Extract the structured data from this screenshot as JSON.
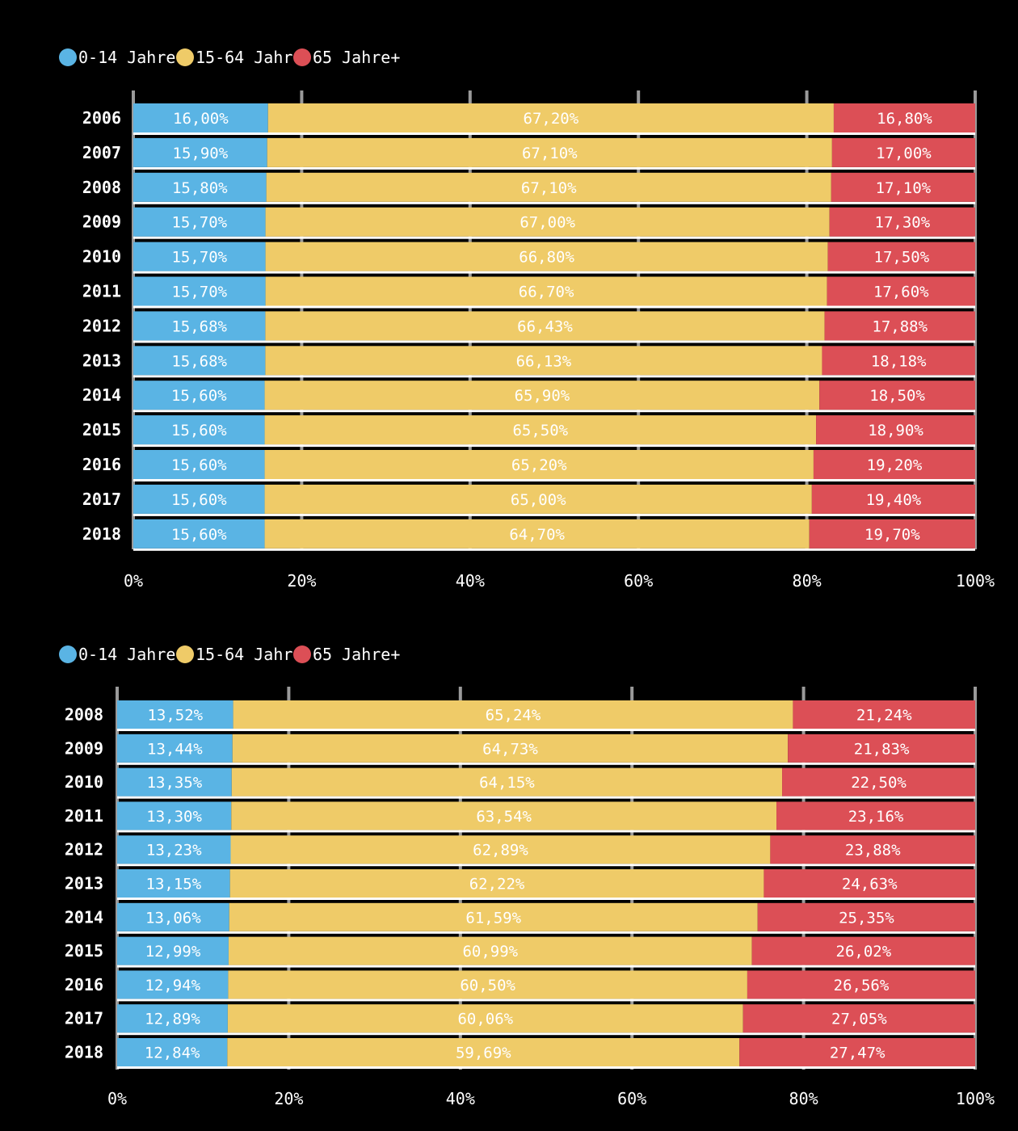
{
  "colors": {
    "young": "#5ab4e4",
    "working": "#efcb68",
    "old": "#dc4f56",
    "grid": "#9a9a9a",
    "separator": "#ffffff"
  },
  "chart_data": [
    {
      "type": "bar",
      "orientation": "horizontal",
      "stacked": true,
      "xlim": [
        0,
        100
      ],
      "x_ticks": [
        "0%",
        "20%",
        "40%",
        "60%",
        "80%",
        "100%"
      ],
      "legend_position": "top-left",
      "grid": true,
      "categories": [
        "2006",
        "2007",
        "2008",
        "2009",
        "2010",
        "2011",
        "2012",
        "2013",
        "2014",
        "2015",
        "2016",
        "2017",
        "2018"
      ],
      "series": [
        {
          "name": "0-14 Jahre",
          "color": "#5ab4e4",
          "values": [
            16.0,
            15.9,
            15.8,
            15.7,
            15.7,
            15.7,
            15.68,
            15.68,
            15.6,
            15.6,
            15.6,
            15.6,
            15.6
          ],
          "labels": [
            "16,00%",
            "15,90%",
            "15,80%",
            "15,70%",
            "15,70%",
            "15,70%",
            "15,68%",
            "15,68%",
            "15,60%",
            "15,60%",
            "15,60%",
            "15,60%",
            "15,60%"
          ]
        },
        {
          "name": "15-64 Jahre",
          "color": "#efcb68",
          "values": [
            67.2,
            67.1,
            67.1,
            67.0,
            66.8,
            66.7,
            66.43,
            66.13,
            65.9,
            65.5,
            65.2,
            65.0,
            64.7
          ],
          "labels": [
            "67,20%",
            "67,10%",
            "67,10%",
            "67,00%",
            "66,80%",
            "66,70%",
            "66,43%",
            "66,13%",
            "65,90%",
            "65,50%",
            "65,20%",
            "65,00%",
            "64,70%"
          ]
        },
        {
          "name": "65 Jahre+",
          "color": "#dc4f56",
          "values": [
            16.8,
            17.0,
            17.1,
            17.3,
            17.5,
            17.6,
            17.88,
            18.18,
            18.5,
            18.9,
            19.2,
            19.4,
            19.7
          ],
          "labels": [
            "16,80%",
            "17,00%",
            "17,10%",
            "17,30%",
            "17,50%",
            "17,60%",
            "17,88%",
            "18,18%",
            "18,50%",
            "18,90%",
            "19,20%",
            "19,40%",
            "19,70%"
          ]
        }
      ]
    },
    {
      "type": "bar",
      "orientation": "horizontal",
      "stacked": true,
      "xlim": [
        0,
        100
      ],
      "x_ticks": [
        "0%",
        "20%",
        "40%",
        "60%",
        "80%",
        "100%"
      ],
      "legend_position": "top-left",
      "grid": true,
      "categories": [
        "2008",
        "2009",
        "2010",
        "2011",
        "2012",
        "2013",
        "2014",
        "2015",
        "2016",
        "2017",
        "2018"
      ],
      "series": [
        {
          "name": "0-14 Jahre",
          "color": "#5ab4e4",
          "values": [
            13.52,
            13.44,
            13.35,
            13.3,
            13.23,
            13.15,
            13.06,
            12.99,
            12.94,
            12.89,
            12.84
          ],
          "labels": [
            "13,52%",
            "13,44%",
            "13,35%",
            "13,30%",
            "13,23%",
            "13,15%",
            "13,06%",
            "12,99%",
            "12,94%",
            "12,89%",
            "12,84%"
          ]
        },
        {
          "name": "15-64 Jahre",
          "color": "#efcb68",
          "values": [
            65.24,
            64.73,
            64.15,
            63.54,
            62.89,
            62.22,
            61.59,
            60.99,
            60.5,
            60.06,
            59.69
          ],
          "labels": [
            "65,24%",
            "64,73%",
            "64,15%",
            "63,54%",
            "62,89%",
            "62,22%",
            "61,59%",
            "60,99%",
            "60,50%",
            "60,06%",
            "59,69%"
          ]
        },
        {
          "name": "65 Jahre+",
          "color": "#dc4f56",
          "values": [
            21.24,
            21.83,
            22.5,
            23.16,
            23.88,
            24.63,
            25.35,
            26.02,
            26.56,
            27.05,
            27.47
          ],
          "labels": [
            "21,24%",
            "21,83%",
            "22,50%",
            "23,16%",
            "23,88%",
            "24,63%",
            "25,35%",
            "26,02%",
            "26,56%",
            "27,05%",
            "27,47%"
          ]
        }
      ]
    }
  ]
}
